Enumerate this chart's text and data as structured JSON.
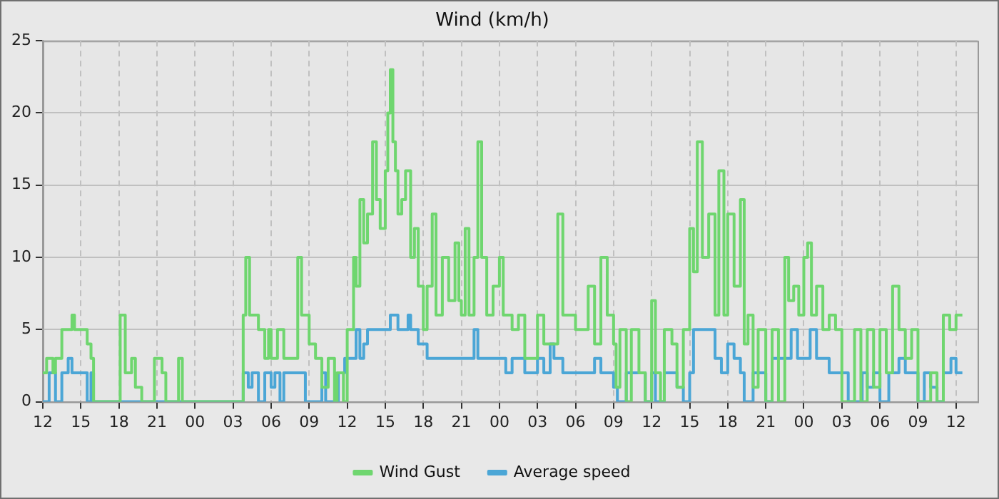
{
  "chart_data": {
    "type": "step",
    "title": "Wind (km/h)",
    "xlim": [
      12,
      85.7
    ],
    "xticks": [
      {
        "value": 12,
        "label": "12"
      },
      {
        "value": 15,
        "label": "15"
      },
      {
        "value": 18,
        "label": "18"
      },
      {
        "value": 21,
        "label": "21"
      },
      {
        "value": 24,
        "label": "00"
      },
      {
        "value": 27,
        "label": "03"
      },
      {
        "value": 30,
        "label": "06"
      },
      {
        "value": 33,
        "label": "09"
      },
      {
        "value": 36,
        "label": "12"
      },
      {
        "value": 39,
        "label": "15"
      },
      {
        "value": 42,
        "label": "18"
      },
      {
        "value": 45,
        "label": "21"
      },
      {
        "value": 48,
        "label": "00"
      },
      {
        "value": 51,
        "label": "03"
      },
      {
        "value": 54,
        "label": "06"
      },
      {
        "value": 57,
        "label": "09"
      },
      {
        "value": 60,
        "label": "12"
      },
      {
        "value": 63,
        "label": "15"
      },
      {
        "value": 66,
        "label": "18"
      },
      {
        "value": 69,
        "label": "21"
      },
      {
        "value": 72,
        "label": "00"
      },
      {
        "value": 75,
        "label": "03"
      },
      {
        "value": 78,
        "label": "06"
      },
      {
        "value": 81,
        "label": "09"
      },
      {
        "value": 84,
        "label": "12"
      }
    ],
    "ylim": [
      0,
      25
    ],
    "yticks": [
      0,
      5,
      10,
      15,
      20,
      25
    ],
    "grid": true,
    "legend": "bottom",
    "marker": "none",
    "line_style": "solid",
    "series": [
      {
        "name": "Wind Gust",
        "color": "#6fd66f",
        "x": [
          12,
          12.3,
          12.8,
          13,
          13.5,
          14,
          14.3,
          14.5,
          15.5,
          15.8,
          16,
          18.1,
          18.5,
          19,
          19.3,
          19.8,
          20.8,
          21.4,
          21.7,
          22.7,
          23,
          27.8,
          28,
          28.3,
          29,
          29.5,
          29.8,
          30,
          30.5,
          31,
          32.1,
          32.4,
          33,
          33.5,
          34,
          34.5,
          35,
          35.2,
          35.7,
          36,
          36.5,
          36.7,
          37,
          37.3,
          37.6,
          38,
          38.3,
          38.6,
          39,
          39.2,
          39.4,
          39.6,
          39.8,
          40,
          40.3,
          40.6,
          41,
          41.3,
          41.6,
          42,
          42.3,
          42.7,
          43,
          43.5,
          44,
          44.5,
          44.8,
          45,
          45.3,
          45.6,
          46,
          46.3,
          46.6,
          47,
          47.5,
          48,
          48.3,
          49,
          49.5,
          50,
          51,
          51.5,
          52.6,
          53,
          54,
          55,
          55.5,
          56,
          56.5,
          57,
          57.2,
          57.5,
          58,
          58.4,
          59,
          59.5,
          60,
          60.3,
          60.7,
          61,
          61.6,
          62,
          62.5,
          63,
          63.3,
          63.6,
          64,
          64.5,
          65,
          65.3,
          65.7,
          66,
          66.5,
          67,
          67.3,
          67.6,
          68,
          68.4,
          69,
          69.5,
          70,
          70.5,
          70.8,
          71.2,
          71.6,
          72,
          72.3,
          72.6,
          73,
          73.5,
          74,
          74.5,
          75,
          76,
          76.5,
          77,
          77.5,
          78,
          78.5,
          79,
          79.5,
          80,
          80.5,
          81,
          82,
          82.5,
          83,
          83.5,
          84,
          84.5
        ],
        "values": [
          2,
          3,
          2,
          3,
          5,
          5,
          6,
          5,
          4,
          3,
          0,
          6,
          2,
          3,
          1,
          0,
          3,
          2,
          0,
          3,
          0,
          6,
          10,
          6,
          5,
          3,
          5,
          3,
          5,
          3,
          10,
          6,
          4,
          3,
          1,
          3,
          0,
          2,
          0,
          5,
          10,
          8,
          14,
          11,
          13,
          18,
          14,
          12,
          16,
          20,
          23,
          18,
          16,
          13,
          14,
          16,
          10,
          12,
          8,
          5,
          8,
          13,
          6,
          10,
          7,
          11,
          7,
          6,
          12,
          6,
          10,
          18,
          10,
          6,
          8,
          10,
          6,
          5,
          6,
          3,
          6,
          4,
          13,
          6,
          5,
          8,
          4,
          10,
          6,
          4,
          1,
          5,
          0,
          5,
          2,
          0,
          7,
          2,
          0,
          5,
          4,
          1,
          5,
          12,
          9,
          18,
          10,
          13,
          6,
          16,
          6,
          13,
          8,
          14,
          4,
          6,
          1,
          5,
          0,
          5,
          0,
          10,
          7,
          8,
          6,
          10,
          11,
          6,
          8,
          5,
          6,
          5,
          0,
          5,
          0,
          5,
          1,
          5,
          2,
          8,
          5,
          3,
          5,
          0,
          2,
          0,
          6,
          5,
          6,
          6
        ]
      },
      {
        "name": "Average speed",
        "color": "#4ba6d6",
        "x": [
          12,
          12.5,
          13,
          13.5,
          14,
          14.3,
          15.5,
          15.8,
          16,
          27.8,
          28.2,
          28.5,
          29,
          29.5,
          30,
          30.3,
          30.7,
          31,
          32.5,
          32.7,
          34,
          34.3,
          35.3,
          35.8,
          36.7,
          37,
          37.3,
          37.6,
          39.4,
          40,
          40.8,
          41,
          41.6,
          42.3,
          45.8,
          46,
          46.3,
          48,
          48.5,
          49,
          50,
          51,
          51.5,
          52,
          52.3,
          53,
          55.5,
          56,
          57,
          57.3,
          58,
          59.5,
          60,
          60.3,
          61,
          62,
          62.5,
          63,
          63.3,
          65,
          65.5,
          66,
          66.5,
          67,
          67.3,
          68,
          69,
          69.5,
          71,
          71.5,
          72.5,
          73,
          74,
          75.5,
          76.6,
          77,
          77.5,
          78,
          78.7,
          79.5,
          80,
          81,
          81.5,
          82,
          82.5,
          83,
          83.6,
          84,
          84.5
        ],
        "values": [
          0,
          2,
          0,
          2,
          3,
          2,
          0,
          2,
          0,
          2,
          1,
          2,
          0,
          2,
          1,
          2,
          0,
          2,
          2,
          0,
          2,
          0,
          2,
          3,
          5,
          3,
          4,
          5,
          6,
          5,
          6,
          5,
          4,
          3,
          3,
          5,
          3,
          3,
          2,
          3,
          2,
          3,
          2,
          4,
          3,
          2,
          3,
          2,
          1,
          0,
          2,
          0,
          2,
          0,
          2,
          1,
          0,
          2,
          5,
          3,
          2,
          4,
          3,
          2,
          0,
          2,
          0,
          3,
          5,
          3,
          5,
          3,
          2,
          0,
          2,
          1,
          2,
          0,
          2,
          3,
          2,
          0,
          2,
          1,
          0,
          2,
          3,
          2,
          2
        ]
      }
    ]
  }
}
